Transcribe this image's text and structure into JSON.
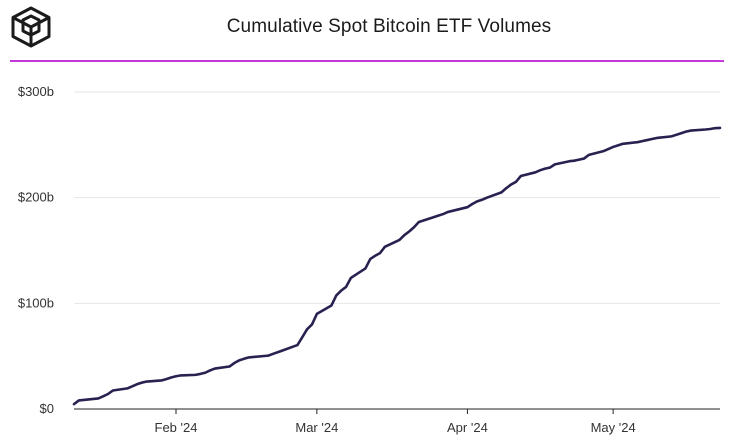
{
  "header": {
    "title": "Cumulative Spot Bitcoin ETF Volumes",
    "logo_icon": "cube-logo-icon"
  },
  "colors": {
    "line": "#2a2150",
    "accent_rule": "#c238d8",
    "grid": "#e6e6e6",
    "axis": "#222222"
  },
  "chart_data": {
    "type": "line",
    "title": "Cumulative Spot Bitcoin ETF Volumes",
    "xlabel": "",
    "ylabel": "",
    "ylim": [
      0,
      300
    ],
    "y_unit": "billions USD",
    "y_ticks": [
      {
        "value": 0,
        "label": "$0"
      },
      {
        "value": 100,
        "label": "$100b"
      },
      {
        "value": 200,
        "label": "$200b"
      },
      {
        "value": 300,
        "label": "$300b"
      }
    ],
    "x_range": [
      "2024-01-11",
      "2024-05-23"
    ],
    "x_ticks": [
      {
        "date": "2024-02-01",
        "label": "Feb '24"
      },
      {
        "date": "2024-03-01",
        "label": "Mar '24"
      },
      {
        "date": "2024-04-01",
        "label": "Apr '24"
      },
      {
        "date": "2024-05-01",
        "label": "May '24"
      }
    ],
    "grid": true,
    "series": [
      {
        "name": "Cumulative Spot Bitcoin ETF Volume",
        "points": [
          [
            "2024-01-11",
            4.6
          ],
          [
            "2024-01-12",
            8.1
          ],
          [
            "2024-01-16",
            10.0
          ],
          [
            "2024-01-17",
            12.0
          ],
          [
            "2024-01-18",
            14.2
          ],
          [
            "2024-01-19",
            17.5
          ],
          [
            "2024-01-22",
            19.5
          ],
          [
            "2024-01-23",
            21.5
          ],
          [
            "2024-01-24",
            23.5
          ],
          [
            "2024-01-25",
            25.0
          ],
          [
            "2024-01-26",
            26.0
          ],
          [
            "2024-01-29",
            27.0
          ],
          [
            "2024-01-30",
            28.3
          ],
          [
            "2024-01-31",
            29.8
          ],
          [
            "2024-02-01",
            31.0
          ],
          [
            "2024-02-02",
            31.8
          ],
          [
            "2024-02-05",
            32.3
          ],
          [
            "2024-02-06",
            33.2
          ],
          [
            "2024-02-07",
            34.3
          ],
          [
            "2024-02-08",
            36.5
          ],
          [
            "2024-02-09",
            38.3
          ],
          [
            "2024-02-12",
            40.2
          ],
          [
            "2024-02-13",
            43.5
          ],
          [
            "2024-02-14",
            46.0
          ],
          [
            "2024-02-15",
            47.5
          ],
          [
            "2024-02-16",
            48.8
          ],
          [
            "2024-02-20",
            50.5
          ],
          [
            "2024-02-21",
            52.2
          ],
          [
            "2024-02-22",
            53.8
          ],
          [
            "2024-02-23",
            55.5
          ],
          [
            "2024-02-26",
            60.5
          ],
          [
            "2024-02-27",
            68.0
          ],
          [
            "2024-02-28",
            75.5
          ],
          [
            "2024-02-29",
            80.0
          ],
          [
            "2024-03-01",
            90.0
          ],
          [
            "2024-03-04",
            98.0
          ],
          [
            "2024-03-05",
            107.5
          ],
          [
            "2024-03-06",
            112.0
          ],
          [
            "2024-03-07",
            115.5
          ],
          [
            "2024-03-08",
            124.0
          ],
          [
            "2024-03-11",
            133.0
          ],
          [
            "2024-03-12",
            142.0
          ],
          [
            "2024-03-13",
            145.0
          ],
          [
            "2024-03-14",
            147.5
          ],
          [
            "2024-03-15",
            153.5
          ],
          [
            "2024-03-18",
            160.0
          ],
          [
            "2024-03-19",
            164.5
          ],
          [
            "2024-03-20",
            168.0
          ],
          [
            "2024-03-21",
            172.0
          ],
          [
            "2024-03-22",
            177.0
          ],
          [
            "2024-03-25",
            181.5
          ],
          [
            "2024-03-26",
            183.0
          ],
          [
            "2024-03-27",
            184.5
          ],
          [
            "2024-03-28",
            186.5
          ],
          [
            "2024-04-01",
            191.0
          ],
          [
            "2024-04-02",
            194.0
          ],
          [
            "2024-04-03",
            196.5
          ],
          [
            "2024-04-04",
            198.0
          ],
          [
            "2024-04-05",
            200.0
          ],
          [
            "2024-04-08",
            205.0
          ],
          [
            "2024-04-09",
            209.0
          ],
          [
            "2024-04-10",
            212.5
          ],
          [
            "2024-04-11",
            215.0
          ],
          [
            "2024-04-12",
            220.5
          ],
          [
            "2024-04-15",
            224.0
          ],
          [
            "2024-04-16",
            226.0
          ],
          [
            "2024-04-17",
            227.5
          ],
          [
            "2024-04-18",
            228.5
          ],
          [
            "2024-04-19",
            231.5
          ],
          [
            "2024-04-22",
            234.5
          ],
          [
            "2024-04-23",
            235.0
          ],
          [
            "2024-04-24",
            236.0
          ],
          [
            "2024-04-25",
            237.0
          ],
          [
            "2024-04-26",
            240.5
          ],
          [
            "2024-04-29",
            244.0
          ],
          [
            "2024-04-30",
            246.0
          ],
          [
            "2024-05-01",
            248.0
          ],
          [
            "2024-05-02",
            249.5
          ],
          [
            "2024-05-03",
            251.0
          ],
          [
            "2024-05-06",
            252.5
          ],
          [
            "2024-05-07",
            253.5
          ],
          [
            "2024-05-08",
            254.5
          ],
          [
            "2024-05-09",
            255.5
          ],
          [
            "2024-05-10",
            256.5
          ],
          [
            "2024-05-13",
            258.0
          ],
          [
            "2024-05-14",
            259.5
          ],
          [
            "2024-05-15",
            261.0
          ],
          [
            "2024-05-16",
            262.5
          ],
          [
            "2024-05-17",
            263.5
          ],
          [
            "2024-05-20",
            264.5
          ],
          [
            "2024-05-21",
            265.0
          ],
          [
            "2024-05-22",
            265.8
          ],
          [
            "2024-05-23",
            266.0
          ]
        ]
      }
    ]
  }
}
